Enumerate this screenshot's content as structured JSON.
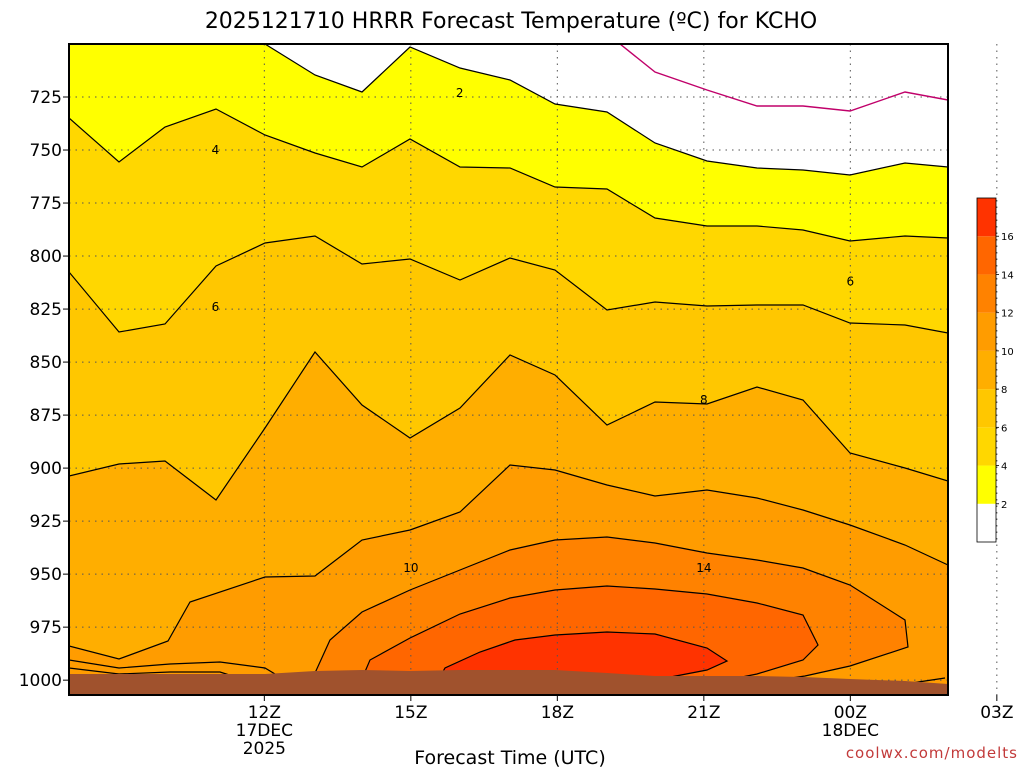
{
  "chart_data": {
    "type": "heatmap",
    "title": "2025121710 HRRR Forecast Temperature (ºC) for KCHO",
    "xlabel": "Forecast Time (UTC)",
    "ylabel": "",
    "y_ticks": [
      725,
      750,
      775,
      800,
      825,
      850,
      875,
      900,
      925,
      950,
      975,
      1000
    ],
    "y_tick_labels": [
      "725",
      "750",
      "775",
      "800",
      "825",
      "850",
      "875",
      "900",
      "925",
      "950",
      "975",
      "1000"
    ],
    "y_range": [
      700,
      1007
    ],
    "y_inverted": true,
    "x_range_hours": [
      8,
      26
    ],
    "x_ticks": [
      {
        "hour": 12,
        "lines": [
          "12Z",
          "17DEC",
          "2025"
        ]
      },
      {
        "hour": 15,
        "lines": [
          "15Z"
        ]
      },
      {
        "hour": 18,
        "lines": [
          "18Z"
        ]
      },
      {
        "hour": 21,
        "lines": [
          "21Z"
        ]
      },
      {
        "hour": 24,
        "lines": [
          "00Z",
          "18DEC"
        ]
      },
      {
        "hour": 27,
        "lines": [
          "03Z"
        ]
      }
    ],
    "grid": "dotted",
    "colorbar": {
      "placement": "right",
      "levels": [
        0,
        2,
        4,
        6,
        8,
        10,
        12,
        14,
        16,
        18
      ],
      "labels": [
        "2",
        "4",
        "6",
        "8",
        "10",
        "12",
        "14",
        "16"
      ],
      "colors": [
        "#ffffff",
        "#ffff00",
        "#ffd700",
        "#ffc700",
        "#ffae00",
        "#ff9c00",
        "#ff8200",
        "#ff6600",
        "#ff3300"
      ]
    },
    "contour_labels": [
      {
        "text": "2",
        "hour": 16.0,
        "pressure": 723
      },
      {
        "text": "4",
        "hour": 11.0,
        "pressure": 750
      },
      {
        "text": "6",
        "hour": 11.0,
        "pressure": 824
      },
      {
        "text": "6",
        "hour": 24.0,
        "pressure": 812
      },
      {
        "text": "8",
        "hour": 21.0,
        "pressure": 868
      },
      {
        "text": "10",
        "hour": 15.0,
        "pressure": 947
      },
      {
        "text": "14",
        "hour": 21.0,
        "pressure": 947
      }
    ],
    "terrain_color": "#a0522d",
    "freezing_line_color": "#c0006a"
  },
  "watermark": "coolwx.com/modelts"
}
